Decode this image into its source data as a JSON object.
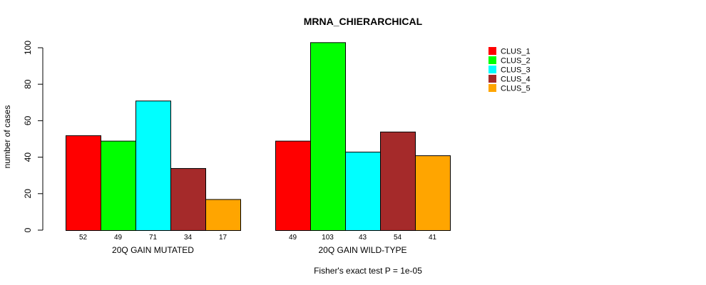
{
  "chart_data": {
    "type": "bar",
    "title": "MRNA_CHIERARCHICAL",
    "ylabel": "number of cases",
    "ylim": [
      0,
      105
    ],
    "yticks": [
      0,
      20,
      40,
      60,
      80,
      100
    ],
    "groups": [
      "20Q GAIN MUTATED",
      "20Q GAIN WILD-TYPE"
    ],
    "series": [
      {
        "name": "CLUS_1",
        "color": "#ff0000",
        "values": [
          52,
          49
        ]
      },
      {
        "name": "CLUS_2",
        "color": "#00ff00",
        "values": [
          49,
          103
        ]
      },
      {
        "name": "CLUS_3",
        "color": "#00ffff",
        "values": [
          71,
          43
        ]
      },
      {
        "name": "CLUS_4",
        "color": "#a52a2a",
        "values": [
          34,
          54
        ]
      },
      {
        "name": "CLUS_5",
        "color": "#ffa500",
        "values": [
          17,
          41
        ]
      }
    ],
    "footnote": "Fisher's exact test P = 1e-05",
    "legend_position": "top-right"
  }
}
